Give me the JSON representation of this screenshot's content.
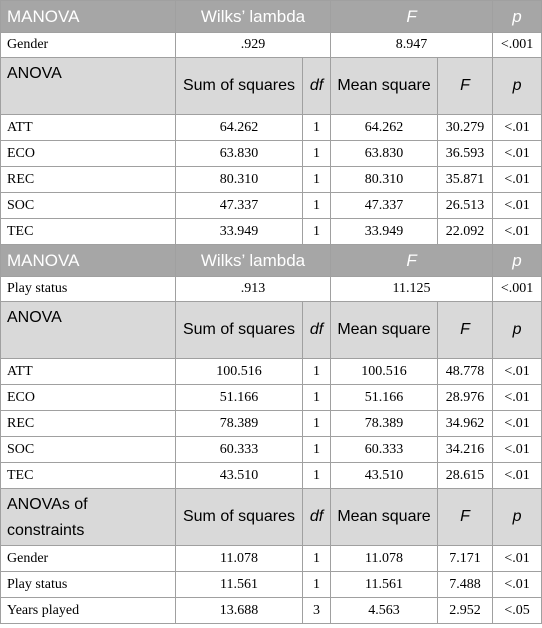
{
  "rows": [
    {
      "kind": "manova-header",
      "cells": [
        "MANOVA",
        "Wilks’ lambda",
        "F",
        "p"
      ]
    },
    {
      "kind": "manova-row",
      "cells": [
        "Gender",
        ".929",
        "8.947",
        "<.001"
      ]
    },
    {
      "kind": "anova-header",
      "cells": [
        "ANOVA",
        "Sum of squares",
        "df",
        "Mean square",
        "F",
        "p"
      ]
    },
    {
      "kind": "data",
      "cells": [
        "ATT",
        "64.262",
        "1",
        "64.262",
        "30.279",
        "<.01"
      ]
    },
    {
      "kind": "data",
      "cells": [
        "ECO",
        "63.830",
        "1",
        "63.830",
        "36.593",
        "<.01"
      ]
    },
    {
      "kind": "data",
      "cells": [
        "REC",
        "80.310",
        "1",
        "80.310",
        "35.871",
        "<.01"
      ]
    },
    {
      "kind": "data",
      "cells": [
        "SOC",
        "47.337",
        "1",
        "47.337",
        "26.513",
        "<.01"
      ]
    },
    {
      "kind": "data",
      "cells": [
        "TEC",
        "33.949",
        "1",
        "33.949",
        "22.092",
        "<.01"
      ]
    },
    {
      "kind": "manova-header",
      "cells": [
        "MANOVA",
        "Wilks’ lambda",
        "F",
        "p"
      ]
    },
    {
      "kind": "manova-row",
      "cells": [
        "Play status",
        ".913",
        "11.125",
        "<.001"
      ]
    },
    {
      "kind": "anova-header",
      "cells": [
        "ANOVA",
        "Sum of squares",
        "df",
        "Mean square",
        "F",
        "p"
      ]
    },
    {
      "kind": "data",
      "cells": [
        "ATT",
        "100.516",
        "1",
        "100.516",
        "48.778",
        "<.01"
      ]
    },
    {
      "kind": "data",
      "cells": [
        "ECO",
        "51.166",
        "1",
        "51.166",
        "28.976",
        "<.01"
      ]
    },
    {
      "kind": "data",
      "cells": [
        "REC",
        "78.389",
        "1",
        "78.389",
        "34.962",
        "<.01"
      ]
    },
    {
      "kind": "data",
      "cells": [
        "SOC",
        "60.333",
        "1",
        "60.333",
        "34.216",
        "<.01"
      ]
    },
    {
      "kind": "data",
      "cells": [
        "TEC",
        "43.510",
        "1",
        "43.510",
        "28.615",
        "<.01"
      ]
    },
    {
      "kind": "anova-header",
      "cells": [
        "ANOVAs of constraints",
        "Sum of squares",
        "df",
        "Mean square",
        "F",
        "p"
      ]
    },
    {
      "kind": "data",
      "cells": [
        "Gender",
        "11.078",
        "1",
        "11.078",
        "7.171",
        "<.01"
      ]
    },
    {
      "kind": "data",
      "cells": [
        "Play status",
        "11.561",
        "1",
        "11.561",
        "7.488",
        "<.01"
      ]
    },
    {
      "kind": "data",
      "cells": [
        "Years played",
        "13.688",
        "3",
        "4.563",
        "2.952",
        "<.05"
      ]
    }
  ]
}
